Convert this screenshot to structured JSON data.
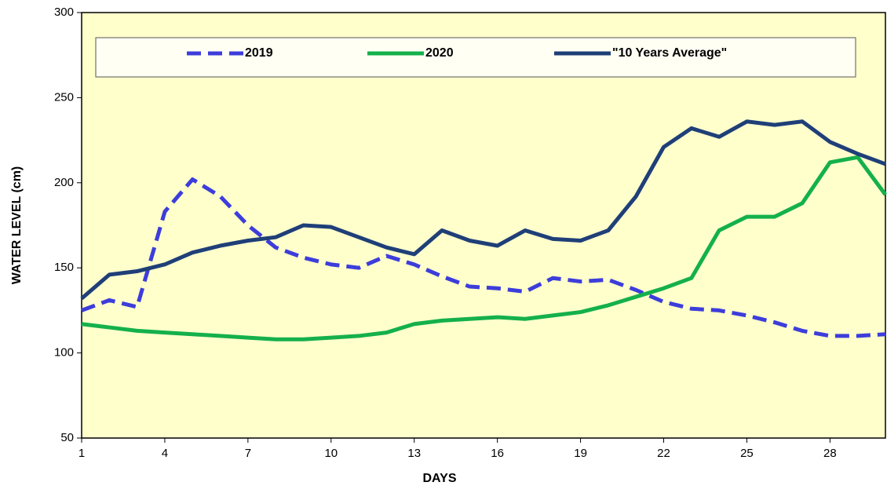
{
  "chart_data": {
    "type": "line",
    "x": [
      1,
      2,
      3,
      4,
      5,
      6,
      7,
      8,
      9,
      10,
      11,
      12,
      13,
      14,
      15,
      16,
      17,
      18,
      19,
      20,
      21,
      22,
      23,
      24,
      25,
      26,
      27,
      28,
      29,
      30
    ],
    "series": [
      {
        "name": "2019",
        "color": "#3d3ddb",
        "dashed": true,
        "values": [
          125,
          131,
          127,
          183,
          202,
          192,
          175,
          162,
          156,
          152,
          150,
          157,
          152,
          145,
          139,
          138,
          136,
          144,
          142,
          143,
          137,
          130,
          126,
          125,
          122,
          118,
          113,
          110,
          110,
          111
        ]
      },
      {
        "name": "2020",
        "color": "#14b04c",
        "dashed": false,
        "values": [
          117,
          115,
          113,
          112,
          111,
          110,
          109,
          108,
          108,
          109,
          110,
          112,
          117,
          119,
          120,
          121,
          120,
          122,
          124,
          128,
          133,
          138,
          144,
          172,
          180,
          180,
          188,
          212,
          215,
          193
        ]
      },
      {
        "name": "\"10 Years Average\"",
        "color": "#1f3f78",
        "dashed": false,
        "values": [
          132,
          146,
          148,
          152,
          159,
          163,
          166,
          168,
          175,
          174,
          168,
          162,
          158,
          172,
          166,
          163,
          172,
          167,
          166,
          172,
          192,
          221,
          232,
          227,
          236,
          234,
          236,
          224,
          217,
          211
        ]
      }
    ],
    "xlabel": "DAYS",
    "ylabel": "WATER LEVEL (cm)",
    "xlim": [
      1,
      30
    ],
    "xticks": [
      1,
      4,
      7,
      10,
      13,
      16,
      19,
      22,
      25,
      28
    ],
    "ylim": [
      50,
      300
    ],
    "yticks": [
      50,
      100,
      150,
      200,
      250,
      300
    ],
    "grid": false,
    "legend": "top",
    "background": "#ffffcc"
  }
}
